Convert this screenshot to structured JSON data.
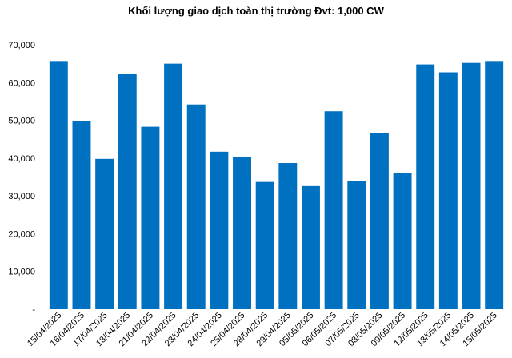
{
  "chart_data": {
    "type": "bar",
    "title": "Khối lượng giao dịch toàn thị trường Đvt: 1,000 CW",
    "xlabel": "",
    "ylabel": "",
    "ylim": [
      0,
      70000
    ],
    "grid": false,
    "legend": "none",
    "bar_color": "#0070C0",
    "y_ticks": [
      0,
      10000,
      20000,
      30000,
      40000,
      50000,
      60000,
      70000
    ],
    "y_tick_labels": [
      "-",
      "10,000",
      "20,000",
      "30,000",
      "40,000",
      "50,000",
      "60,000",
      "70,000"
    ],
    "categories": [
      "15/04/2025",
      "16/04/2025",
      "17/04/2025",
      "18/04/2025",
      "21/04/2025",
      "22/04/2025",
      "23/04/2025",
      "24/04/2025",
      "25/04/2025",
      "28/04/2025",
      "29/04/2025",
      "05/05/2025",
      "06/05/2025",
      "07/05/2025",
      "08/05/2025",
      "09/05/2025",
      "12/05/2025",
      "13/05/2025",
      "14/05/2025",
      "15/05/2025"
    ],
    "values": [
      65700,
      49700,
      39800,
      62300,
      48300,
      65000,
      54200,
      41700,
      40400,
      33700,
      38700,
      32600,
      52400,
      34000,
      46700,
      36000,
      64800,
      62700,
      65200,
      65700
    ]
  }
}
